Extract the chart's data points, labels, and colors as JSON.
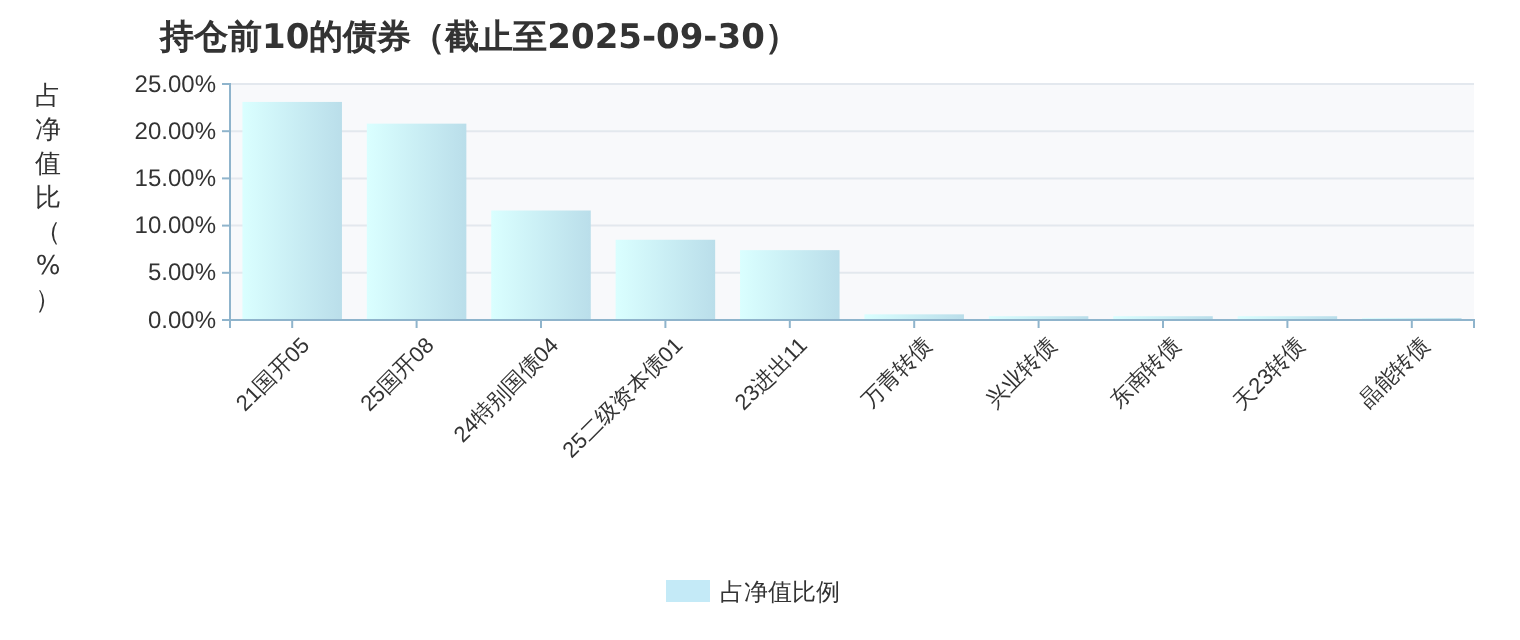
{
  "chart_data": {
    "type": "bar",
    "title": "持仓前10的债券（截止至2025-09-30）",
    "ylabel": "占净值比（%）",
    "categories": [
      "21国开05",
      "25国开08",
      "24特别国债04",
      "25二级资本债01",
      "23进出11",
      "万青转债",
      "兴业转债",
      "东南转债",
      "天23转债",
      "晶能转债"
    ],
    "series": [
      {
        "name": "占净值比例",
        "color": "#c4eaf7",
        "values": [
          23.1,
          20.8,
          11.6,
          8.5,
          7.4,
          0.6,
          0.4,
          0.4,
          0.4,
          0.2
        ]
      }
    ],
    "ylim": [
      0,
      25
    ],
    "yticks": [
      {
        "value": 0,
        "label": "0.00%"
      },
      {
        "value": 5,
        "label": "5.00%"
      },
      {
        "value": 10,
        "label": "10.00%"
      },
      {
        "value": 15,
        "label": "15.00%"
      },
      {
        "value": 20,
        "label": "20.00%"
      },
      {
        "value": 25,
        "label": "25.00%"
      }
    ],
    "grid": "y",
    "legend": "bottom"
  }
}
